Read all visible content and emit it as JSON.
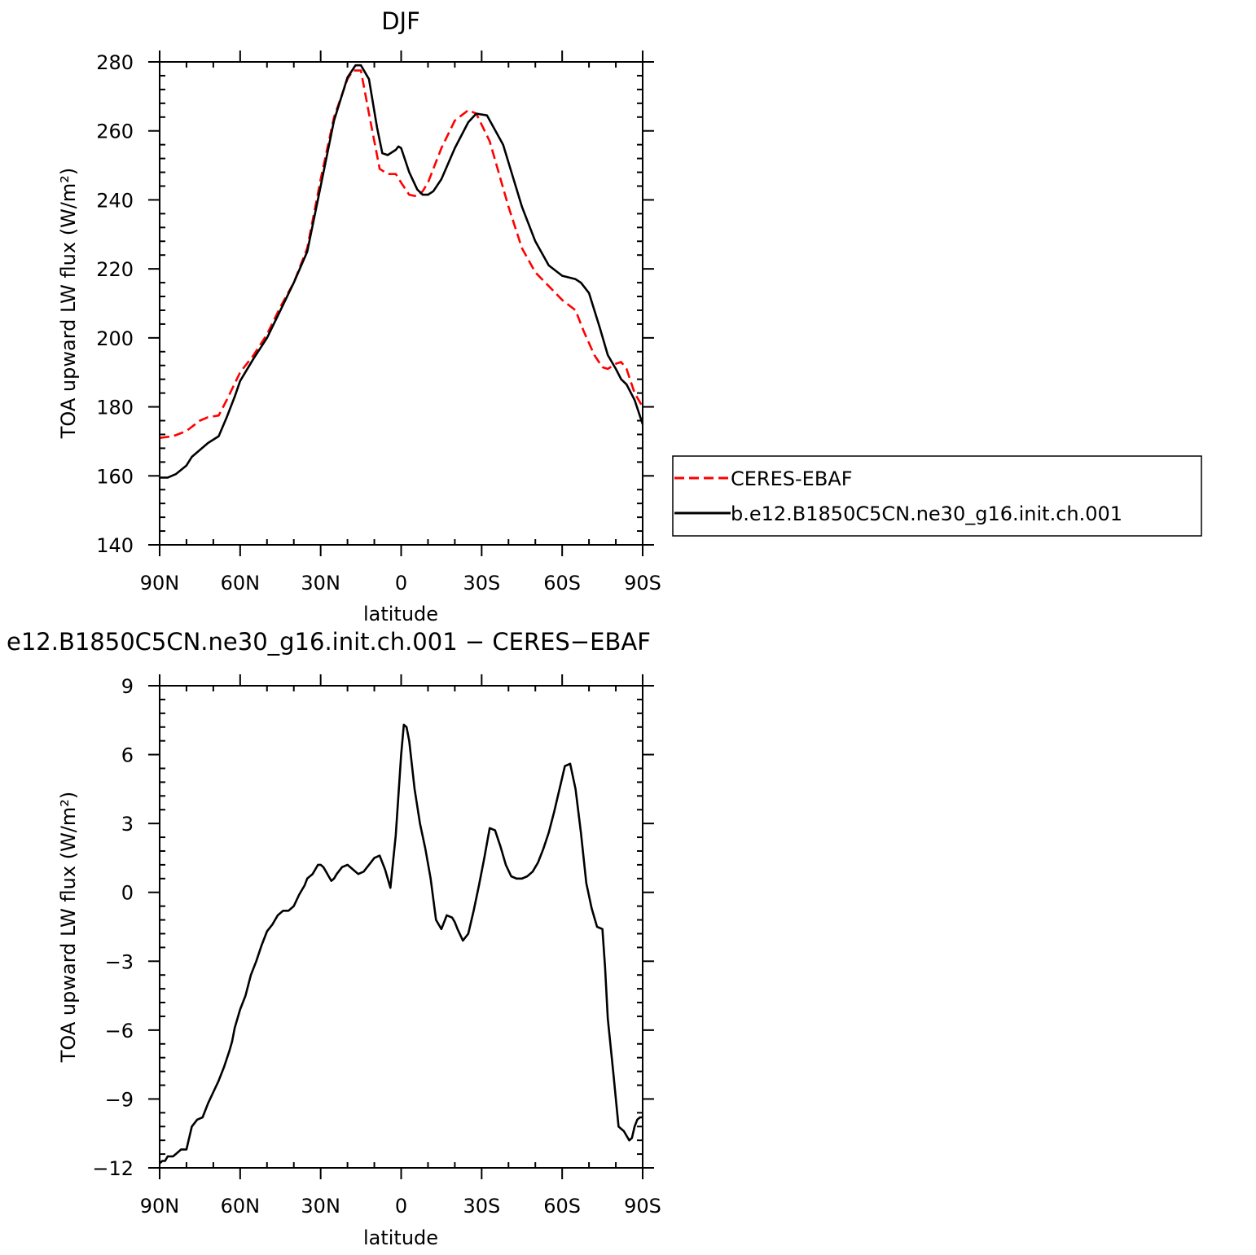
{
  "chart_data": [
    {
      "type": "line",
      "title": "DJF",
      "xlabel": "latitude",
      "ylabel": "TOA upward LW flux (W/m²)",
      "ylim": [
        140,
        280
      ],
      "xlim": [
        90,
        -90
      ],
      "x_tick_values": [
        90,
        60,
        30,
        0,
        -30,
        -60,
        -90
      ],
      "x_tick_labels": [
        "90N",
        "60N",
        "30N",
        "0",
        "30S",
        "60S",
        "90S"
      ],
      "y_tick_values": [
        140,
        160,
        180,
        200,
        220,
        240,
        260,
        280
      ],
      "y_tick_labels": [
        "140",
        "160",
        "180",
        "200",
        "220",
        "240",
        "260",
        "280"
      ],
      "legend_position": "right",
      "series": [
        {
          "name": "CERES-EBAF",
          "color": "#ff0000",
          "dash": "dashed",
          "x": [
            90,
            85,
            80,
            75,
            72,
            68,
            65,
            60,
            55,
            50,
            45,
            40,
            35,
            30,
            25,
            20,
            18,
            15,
            12,
            8,
            5,
            2,
            0,
            -3,
            -6,
            -8,
            -10,
            -15,
            -20,
            -25,
            -28,
            -33,
            -40,
            -45,
            -50,
            -55,
            -60,
            -65,
            -68,
            -72,
            -75,
            -77,
            -80,
            -82,
            -84,
            -87,
            -90
          ],
          "y": [
            171,
            171.5,
            173,
            176,
            177,
            177.5,
            182,
            190,
            195,
            201,
            209,
            216,
            226,
            246,
            264,
            275,
            277.5,
            277.5,
            265,
            249,
            247.5,
            247.5,
            245,
            241.5,
            241,
            242.5,
            245,
            255,
            263,
            266,
            265,
            257,
            238,
            226,
            219,
            215,
            211,
            208,
            202,
            195,
            191.5,
            191,
            192.5,
            193,
            191,
            184,
            180
          ]
        },
        {
          "name": "b.e12.B1850C5CN.ne30_g16.init.ch.001",
          "color": "#000000",
          "dash": "solid",
          "x": [
            90,
            87,
            84,
            80,
            78,
            75,
            72,
            68,
            65,
            62,
            60,
            55,
            50,
            45,
            40,
            35,
            30,
            25,
            20,
            17,
            15,
            12,
            9,
            7,
            5,
            2,
            1,
            0,
            -3,
            -6,
            -8,
            -10,
            -12,
            -15,
            -20,
            -25,
            -28,
            -32,
            -38,
            -45,
            -50,
            -55,
            -60,
            -65,
            -67,
            -70,
            -74,
            -77,
            -80,
            -82,
            -84,
            -87,
            -90
          ],
          "y": [
            159.5,
            159.5,
            160.5,
            163,
            165.5,
            167.5,
            169.5,
            171.5,
            177,
            183,
            187.5,
            194,
            200,
            208,
            216,
            225,
            244,
            263,
            275.5,
            279,
            279,
            275,
            261,
            253.5,
            253,
            254.5,
            255.5,
            255,
            248,
            243,
            241.5,
            241.5,
            242.5,
            246,
            255,
            262.5,
            265,
            264.5,
            256,
            238,
            228,
            221,
            218,
            217,
            216,
            213,
            203,
            195,
            191,
            188,
            186.5,
            182,
            175
          ]
        }
      ]
    },
    {
      "type": "line",
      "title": "e12.B1850C5CN.ne30_g16.init.ch.001 − CERES−EBAF",
      "xlabel": "latitude",
      "ylabel": "TOA upward LW flux (W/m²)",
      "ylim": [
        -12,
        9
      ],
      "xlim": [
        90,
        -90
      ],
      "x_tick_values": [
        90,
        60,
        30,
        0,
        -30,
        -60,
        -90
      ],
      "x_tick_labels": [
        "90N",
        "60N",
        "30N",
        "0",
        "30S",
        "60S",
        "90S"
      ],
      "y_tick_values": [
        -12,
        -9,
        -6,
        -3,
        0,
        3,
        6,
        9
      ],
      "y_tick_labels": [
        "−12",
        "−9",
        "−6",
        "−3",
        "0",
        "3",
        "6",
        "9"
      ],
      "series": [
        {
          "name": "",
          "color": "#000000",
          "dash": "solid",
          "x": [
            90,
            89,
            88,
            87,
            85,
            84,
            82,
            80,
            78,
            76,
            74,
            72,
            70,
            68,
            66,
            64,
            63,
            62,
            61,
            60,
            58,
            56,
            54,
            52,
            50,
            48,
            46,
            44,
            42,
            40,
            38,
            37,
            36,
            35,
            33,
            32,
            31,
            30,
            29,
            28,
            27,
            26,
            25,
            24,
            22,
            20,
            18,
            16,
            14,
            12,
            10,
            8,
            6,
            4,
            2,
            0,
            -1,
            -2,
            -3,
            -5,
            -7,
            -9,
            -11,
            -13,
            -15,
            -17,
            -19,
            -20,
            -21,
            -23,
            -25,
            -27,
            -29,
            -31,
            -33,
            -35,
            -37,
            -39,
            -41,
            -43,
            -45,
            -47,
            -49,
            -51,
            -53,
            -55,
            -57,
            -59,
            -61,
            -63,
            -65,
            -67,
            -69,
            -71,
            -73,
            -75,
            -76,
            -77,
            -79,
            -81,
            -83,
            -85,
            -86,
            -87,
            -88,
            -89,
            -90
          ],
          "y": [
            -11.8,
            -11.7,
            -11.7,
            -11.5,
            -11.5,
            -11.4,
            -11.2,
            -11.2,
            -10.2,
            -9.9,
            -9.8,
            -9.2,
            -8.7,
            -8.2,
            -7.6,
            -6.9,
            -6.5,
            -5.9,
            -5.5,
            -5.1,
            -4.5,
            -3.6,
            -3.0,
            -2.3,
            -1.7,
            -1.4,
            -1.0,
            -0.8,
            -0.8,
            -0.6,
            -0.1,
            0.1,
            0.3,
            0.6,
            0.8,
            1.0,
            1.2,
            1.2,
            1.1,
            0.9,
            0.7,
            0.5,
            0.6,
            0.8,
            1.1,
            1.2,
            1.0,
            0.8,
            0.9,
            1.2,
            1.5,
            1.6,
            1.0,
            0.2,
            2.5,
            6.0,
            7.3,
            7.2,
            6.6,
            4.5,
            3.0,
            1.9,
            0.6,
            -1.2,
            -1.6,
            -1.0,
            -1.1,
            -1.3,
            -1.6,
            -2.1,
            -1.8,
            -0.8,
            0.3,
            1.5,
            2.8,
            2.7,
            2.0,
            1.2,
            0.7,
            0.6,
            0.6,
            0.7,
            0.9,
            1.3,
            1.9,
            2.6,
            3.5,
            4.5,
            5.5,
            5.6,
            4.5,
            2.6,
            0.4,
            -0.7,
            -1.5,
            -1.6,
            -3.3,
            -5.5,
            -7.8,
            -10.2,
            -10.4,
            -10.8,
            -10.7,
            -10.2,
            -9.9,
            -9.8,
            -9.8
          ]
        }
      ]
    }
  ]
}
